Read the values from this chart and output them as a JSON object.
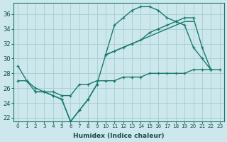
{
  "xlabel": "Humidex (Indice chaleur)",
  "bg_color": "#cce8ec",
  "grid_color": "#a8cdd4",
  "line_color": "#1a7a6e",
  "xlim": [
    -0.5,
    23.5
  ],
  "ylim": [
    21.5,
    37.5
  ],
  "xticks": [
    0,
    1,
    2,
    3,
    4,
    5,
    6,
    7,
    8,
    9,
    10,
    11,
    12,
    13,
    14,
    15,
    16,
    17,
    18,
    19,
    20,
    21,
    22,
    23
  ],
  "yticks": [
    22,
    24,
    26,
    28,
    30,
    32,
    34,
    36
  ],
  "curve_line": [
    29.0,
    27.0,
    25.5,
    25.5,
    25.0,
    24.5,
    21.5,
    23.0,
    24.5,
    26.5,
    30.5,
    34.5,
    35.5,
    36.5,
    37.0,
    37.0,
    36.5,
    35.5,
    35.0,
    34.5,
    31.5,
    30.0,
    28.5,
    null
  ],
  "diag_line1": [
    null,
    null,
    null,
    null,
    null,
    null,
    null,
    null,
    null,
    null,
    30.5,
    31.0,
    31.5,
    32.0,
    32.5,
    33.5,
    34.0,
    34.5,
    35.0,
    35.5,
    35.5,
    31.5,
    28.5,
    null
  ],
  "diag_line2": [
    null,
    null,
    null,
    null,
    null,
    null,
    null,
    null,
    null,
    null,
    30.5,
    31.0,
    31.5,
    32.0,
    32.5,
    33.0,
    33.5,
    34.0,
    34.5,
    35.0,
    35.0,
    null,
    null,
    null
  ],
  "flat_line": [
    27.0,
    27.0,
    26.0,
    25.5,
    25.5,
    25.0,
    25.0,
    26.5,
    26.5,
    27.0,
    27.0,
    27.0,
    27.5,
    27.5,
    27.5,
    28.0,
    28.0,
    28.0,
    28.0,
    28.0,
    28.5,
    28.5,
    28.5,
    28.5
  ],
  "zigzag_line": [
    null,
    null,
    25.5,
    25.5,
    25.0,
    24.5,
    21.5,
    23.0,
    24.5,
    26.5,
    null,
    null,
    null,
    null,
    null,
    null,
    null,
    null,
    null,
    null,
    null,
    null,
    null,
    null
  ]
}
